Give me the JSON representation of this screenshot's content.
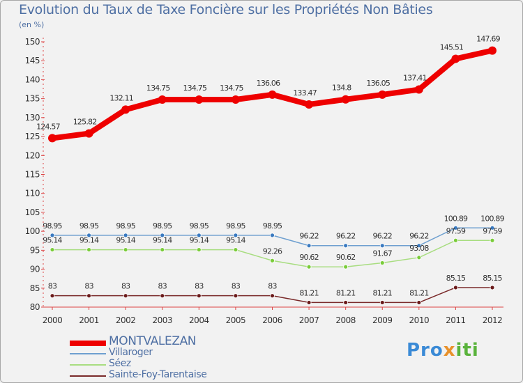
{
  "header": {
    "title": "Evolution du Taux de Taxe Foncière sur les Propriétés Non Bâties",
    "unit": "(en %)"
  },
  "chart_data": {
    "type": "line",
    "title": "Evolution du Taux de Taxe Foncière sur les Propriétés Non Bâties",
    "ylabel": "(en %)",
    "xlabel": "",
    "ylim": [
      80,
      150
    ],
    "yticks": [
      80,
      85,
      90,
      95,
      100,
      105,
      110,
      115,
      120,
      125,
      130,
      135,
      140,
      145,
      150
    ],
    "grid": false,
    "legend_position": "bottom-left",
    "x": [
      "2000",
      "2001",
      "2002",
      "2003",
      "2004",
      "2005",
      "2006",
      "2007",
      "2008",
      "2009",
      "2010",
      "2011",
      "2012"
    ],
    "series": [
      {
        "name": "MONTVALEZAN",
        "color": "#ee0000",
        "values": [
          124.57,
          125.82,
          132.11,
          134.75,
          134.75,
          134.75,
          136.06,
          133.47,
          134.8,
          136.05,
          137.41,
          145.51,
          147.69
        ],
        "labels": [
          "124.57",
          "125.82",
          "132.11",
          "134.75",
          "134.75",
          "134.75",
          "136.06",
          "133.47",
          "134.8",
          "136.05",
          "137.41",
          "145.51",
          "147.69"
        ]
      },
      {
        "name": "Villaroger",
        "color": "#6fa0d0",
        "marker": "#3a7ac0",
        "values": [
          98.95,
          98.95,
          98.95,
          98.95,
          98.95,
          98.95,
          98.95,
          96.22,
          96.22,
          96.22,
          96.22,
          100.89,
          100.89
        ],
        "labels": [
          "98.95",
          "98.95",
          "98.95",
          "98.95",
          "98.95",
          "98.95",
          "98.95",
          "96.22",
          "96.22",
          "96.22",
          "96.22",
          "100.89",
          "100.89"
        ]
      },
      {
        "name": "Séez",
        "color": "#a8dd80",
        "marker": "#7acc3a",
        "values": [
          95.14,
          95.14,
          95.14,
          95.14,
          95.14,
          95.14,
          92.26,
          90.62,
          90.62,
          91.67,
          93.08,
          97.59,
          97.59
        ],
        "labels": [
          "95.14",
          "95.14",
          "95.14",
          "95.14",
          "95.14",
          "95.14",
          "92.26",
          "90.62",
          "90.62",
          "91.67",
          "93.08",
          "97.59",
          "97.59"
        ]
      },
      {
        "name": "Sainte-Foy-Tarentaise",
        "color": "#7a2a2a",
        "marker": "#6a1a1a",
        "values": [
          83,
          83,
          83,
          83,
          83,
          83,
          83,
          81.21,
          81.21,
          81.21,
          81.21,
          85.15,
          85.15
        ],
        "labels": [
          "83",
          "83",
          "83",
          "83",
          "83",
          "83",
          "83",
          "81.21",
          "81.21",
          "81.21",
          "81.21",
          "85.15",
          "85.15"
        ]
      }
    ]
  },
  "legend": {
    "items": [
      "MONTVALEZAN",
      "Villaroger",
      "Séez",
      "Sainte-Foy-Tarentaise"
    ]
  },
  "brand": {
    "part1": "Pro",
    "part2": "x",
    "part3": "iti"
  }
}
